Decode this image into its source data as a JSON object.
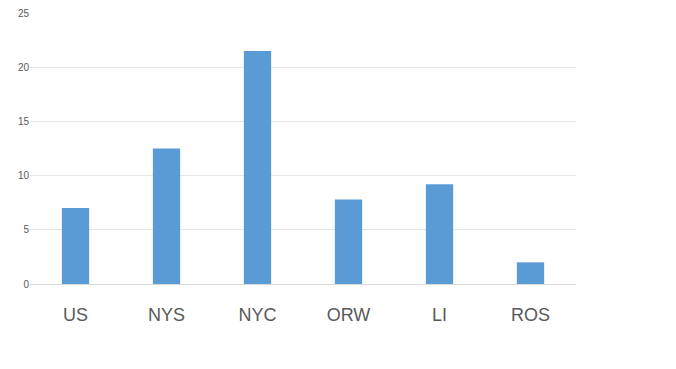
{
  "chart_data": {
    "type": "bar",
    "categories": [
      "US",
      "NYS",
      "NYC",
      "ORW",
      "LI",
      "ROS"
    ],
    "values": [
      7,
      12.5,
      21.5,
      7.8,
      9.2,
      2
    ],
    "color": "#5b9bd5",
    "ylim": [
      0,
      25
    ],
    "yticks": [
      0,
      5,
      10,
      15,
      20,
      25
    ],
    "grid": true
  }
}
